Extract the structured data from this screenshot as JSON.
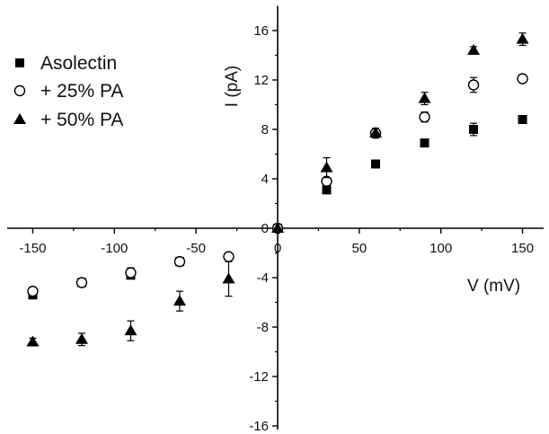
{
  "chart_data": {
    "type": "scatter",
    "xlabel": "V (mV)",
    "ylabel": "I (pA)",
    "xlim": [
      -165,
      165
    ],
    "ylim": [
      -16,
      18
    ],
    "x_ticks": [
      -150,
      -100,
      -50,
      0,
      50,
      100,
      150
    ],
    "x_tick_labels": [
      "-150",
      "-100",
      "-50",
      "0",
      "50",
      "100",
      "150"
    ],
    "y_ticks": [
      -16,
      -12,
      -8,
      -4,
      0,
      4,
      8,
      12,
      16
    ],
    "y_tick_labels": [
      "-16",
      "-12",
      "-8",
      "-4",
      "0",
      "4",
      "8",
      "12",
      "16"
    ],
    "grid": false,
    "legend_position": "top-left",
    "series": [
      {
        "name": "Asolectin",
        "marker": "filled-square",
        "color": "#000000",
        "x": [
          -150,
          -120,
          -90,
          -60,
          -30,
          0,
          30,
          60,
          90,
          120,
          150
        ],
        "y": [
          -5.4,
          -4.4,
          -3.8,
          -2.7,
          null,
          0,
          3.1,
          5.2,
          6.9,
          8.0,
          8.8
        ],
        "err": [
          0.2,
          0.2,
          0.2,
          0.2,
          null,
          0,
          0.2,
          0.2,
          0.2,
          0.5,
          0.2
        ]
      },
      {
        "name": "+ 25% PA",
        "marker": "open-circle",
        "color": "#000000",
        "x": [
          -150,
          -120,
          -90,
          -60,
          -30,
          0,
          30,
          60,
          90,
          120,
          150
        ],
        "y": [
          -5.1,
          -4.4,
          -3.6,
          -2.7,
          -2.3,
          0,
          3.8,
          7.7,
          9.0,
          11.6,
          12.1
        ],
        "err": [
          0.3,
          0.3,
          0.4,
          0.3,
          0.2,
          0,
          0.3,
          0.3,
          0.4,
          0.6,
          0.3
        ]
      },
      {
        "name": "+ 50% PA",
        "marker": "filled-triangle",
        "color": "#000000",
        "x": [
          -150,
          -120,
          -90,
          -60,
          -30,
          0,
          30,
          60,
          90,
          120,
          150
        ],
        "y": [
          -9.2,
          -9.0,
          -8.3,
          -5.9,
          -4.1,
          0,
          4.9,
          7.7,
          10.5,
          14.4,
          15.3
        ],
        "err": [
          0.3,
          0.5,
          0.8,
          0.8,
          1.4,
          0,
          0.8,
          0.4,
          0.5,
          0.3,
          0.5
        ]
      }
    ]
  }
}
